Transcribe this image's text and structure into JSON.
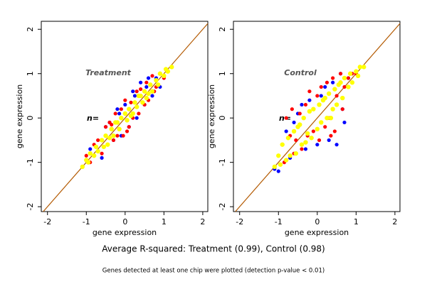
{
  "chart_data": [
    {
      "type": "scatter",
      "title": "Treatment",
      "annotation": "n=",
      "xlabel": "gene expression",
      "ylabel": "gene expression",
      "xlim": [
        -2.16,
        2.13
      ],
      "ylim": [
        -2.11,
        2.18
      ],
      "xticks": [
        -2,
        -1,
        0,
        1,
        2
      ],
      "yticks": [
        -2,
        -1,
        0,
        1,
        2
      ],
      "identity_line_color": "#b35900",
      "series": [
        {
          "color": "#0000ff",
          "x": [
            -0.9,
            -0.6,
            -0.4,
            -0.3,
            -0.2,
            -0.1,
            0.0,
            0.1,
            0.2,
            0.3,
            0.4,
            0.5,
            0.6,
            0.7,
            0.8,
            0.9,
            -0.5,
            0.25,
            0.55,
            -0.15
          ],
          "values": [
            -0.7,
            -0.9,
            -0.1,
            -0.5,
            0.2,
            -0.4,
            0.3,
            -0.2,
            0.6,
            0.0,
            0.8,
            0.3,
            0.9,
            0.5,
            0.9,
            0.7,
            -0.2,
            0.5,
            0.7,
            0.1
          ]
        },
        {
          "color": "#ff0000",
          "x": [
            -1.0,
            -0.9,
            -0.8,
            -0.7,
            -0.6,
            -0.5,
            -0.45,
            -0.4,
            -0.3,
            -0.25,
            -0.2,
            -0.1,
            -0.05,
            0.0,
            0.1,
            0.15,
            0.2,
            0.3,
            0.35,
            0.4,
            0.5,
            0.55,
            0.6,
            0.7,
            0.75,
            0.8,
            0.9,
            1.0,
            -0.35,
            0.05
          ],
          "values": [
            -0.85,
            -1.0,
            -0.6,
            -0.5,
            -0.8,
            -0.2,
            -0.6,
            -0.1,
            -0.5,
            0.1,
            -0.4,
            0.2,
            -0.4,
            0.4,
            -0.2,
            0.35,
            0.0,
            0.6,
            0.1,
            0.65,
            0.3,
            0.8,
            0.4,
            0.95,
            0.6,
            0.7,
            1.0,
            0.9,
            -0.15,
            -0.3
          ]
        },
        {
          "color": "#ffff00",
          "x": [
            -1.1,
            -1.0,
            -0.95,
            -0.9,
            -0.8,
            -0.75,
            -0.7,
            -0.6,
            -0.55,
            -0.5,
            -0.4,
            -0.35,
            -0.3,
            -0.2,
            -0.15,
            -0.1,
            0.0,
            0.05,
            0.1,
            0.2,
            0.25,
            0.3,
            0.4,
            0.45,
            0.5,
            0.6,
            0.65,
            0.7,
            0.8,
            0.85,
            0.9,
            1.0,
            1.05,
            1.1,
            1.2,
            -0.45,
            -0.25,
            0.15,
            0.35,
            0.55
          ],
          "values": [
            -1.1,
            -0.95,
            -1.0,
            -0.8,
            -0.85,
            -0.65,
            -0.75,
            -0.5,
            -0.65,
            -0.4,
            -0.45,
            -0.25,
            -0.4,
            -0.1,
            -0.25,
            0.0,
            0.1,
            -0.05,
            0.2,
            0.1,
            0.35,
            0.25,
            0.5,
            0.35,
            0.6,
            0.55,
            0.75,
            0.6,
            0.85,
            0.75,
            1.0,
            0.95,
            1.1,
            1.05,
            1.15,
            -0.6,
            -0.1,
            0.05,
            0.5,
            0.45
          ]
        }
      ]
    },
    {
      "type": "scatter",
      "title": "Control",
      "annotation": "n=",
      "xlabel": "gene expression",
      "ylabel": "gene expression",
      "xlim": [
        -2.16,
        2.13
      ],
      "ylim": [
        -2.11,
        2.18
      ],
      "xticks": [
        -2,
        -1,
        0,
        1,
        2
      ],
      "yticks": [
        -2,
        -1,
        0,
        1,
        2
      ],
      "identity_line_color": "#b35900",
      "series": [
        {
          "color": "#0000ff",
          "x": [
            -1.1,
            -0.8,
            -0.7,
            -0.5,
            -0.3,
            -0.2,
            0.0,
            0.1,
            0.3,
            0.4,
            0.5,
            0.6,
            0.7,
            0.8,
            -0.6,
            0.2,
            -0.4,
            0.65,
            0.9,
            -1.0
          ],
          "values": [
            -1.15,
            -0.3,
            -0.9,
            0.1,
            -0.7,
            0.4,
            -0.6,
            0.5,
            -0.5,
            0.8,
            -0.6,
            1.0,
            -0.1,
            0.9,
            -0.1,
            0.7,
            0.3,
            0.2,
            0.8,
            -1.2
          ]
        },
        {
          "color": "#ff0000",
          "x": [
            -0.9,
            -0.85,
            -0.8,
            -0.7,
            -0.65,
            -0.6,
            -0.5,
            -0.45,
            -0.4,
            -0.3,
            -0.25,
            -0.2,
            -0.1,
            0.0,
            0.05,
            0.1,
            0.2,
            0.25,
            0.3,
            0.4,
            0.45,
            0.5,
            0.6,
            0.65,
            0.7,
            0.8,
            0.9,
            1.0,
            -0.55,
            0.35
          ],
          "values": [
            -0.6,
            -1.0,
            0.0,
            -0.4,
            0.2,
            -0.8,
            -0.2,
            0.1,
            -0.7,
            0.3,
            -0.4,
            0.6,
            -0.3,
            0.5,
            -0.5,
            0.7,
            -0.2,
            0.8,
            0.0,
            0.9,
            -0.3,
            0.5,
            1.0,
            0.2,
            0.7,
            0.9,
            1.0,
            1.0,
            -0.5,
            -0.4
          ]
        },
        {
          "color": "#ffff00",
          "x": [
            -1.1,
            -1.0,
            -0.95,
            -0.9,
            -0.8,
            -0.75,
            -0.7,
            -0.6,
            -0.55,
            -0.5,
            -0.4,
            -0.35,
            -0.3,
            -0.2,
            -0.15,
            -0.1,
            0.0,
            0.05,
            0.1,
            0.2,
            0.25,
            0.3,
            0.4,
            0.45,
            0.5,
            0.6,
            0.65,
            0.7,
            0.8,
            0.85,
            0.9,
            1.0,
            1.05,
            1.1,
            1.2,
            -0.45,
            -0.25,
            0.15,
            0.35,
            0.55
          ],
          "values": [
            -1.1,
            -0.85,
            -1.05,
            -0.6,
            -0.95,
            -0.45,
            -0.85,
            -0.3,
            -0.8,
            -0.2,
            -0.6,
            0.0,
            -0.55,
            0.15,
            -0.45,
            0.2,
            -0.25,
            0.3,
            -0.1,
            0.45,
            0.0,
            0.55,
            0.2,
            0.65,
            0.3,
            0.8,
            0.45,
            0.9,
            0.7,
            1.0,
            0.8,
            1.05,
            0.95,
            1.15,
            1.15,
            -0.15,
            -0.35,
            0.4,
            0.0,
            0.75
          ]
        }
      ]
    }
  ],
  "caption": "Average R-squared: Treatment (0.99), Control (0.98)",
  "footnote": "Genes detected at least one chip were plotted (detection p-value < 0.01)"
}
